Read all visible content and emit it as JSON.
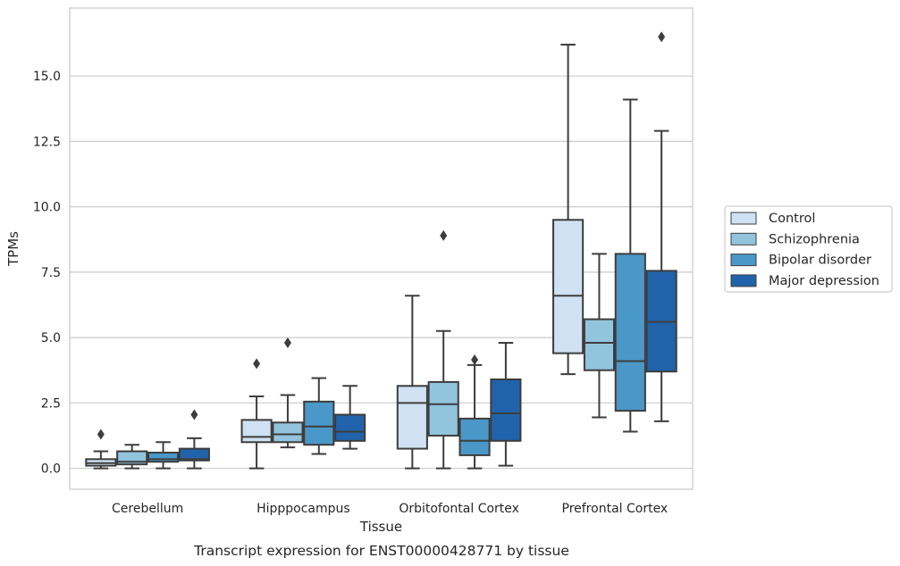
{
  "chart_data": {
    "type": "box",
    "caption": "Transcript expression for ENST00000428771 by tissue",
    "xlabel": "Tissue",
    "ylabel": "TPMs",
    "ylim": [
      -0.8,
      17.6
    ],
    "yticks": [
      0.0,
      2.5,
      5.0,
      7.5,
      10.0,
      12.5,
      15.0
    ],
    "ytick_labels": [
      "0.0",
      "2.5",
      "5.0",
      "7.5",
      "10.0",
      "12.5",
      "15.0"
    ],
    "categories": [
      "Cerebellum",
      "Hipppocampus",
      "Orbitofontal Cortex",
      "Prefrontal Cortex"
    ],
    "grid": "horizontal",
    "legend_position": "right",
    "series": [
      {
        "name": "Control",
        "color": "#cfe1f2",
        "boxes": [
          {
            "whislo": 0.0,
            "q1": 0.1,
            "med": 0.2,
            "q3": 0.35,
            "whishi": 0.65,
            "fliers": [
              1.3
            ]
          },
          {
            "whislo": 0.0,
            "q1": 1.0,
            "med": 1.2,
            "q3": 1.85,
            "whishi": 2.75,
            "fliers": [
              4.0
            ]
          },
          {
            "whislo": 0.0,
            "q1": 0.75,
            "med": 2.5,
            "q3": 3.15,
            "whishi": 6.6,
            "fliers": []
          },
          {
            "whislo": 3.6,
            "q1": 4.4,
            "med": 6.6,
            "q3": 9.5,
            "whishi": 16.2,
            "fliers": []
          }
        ]
      },
      {
        "name": "Schizophrenia",
        "color": "#93c4de",
        "boxes": [
          {
            "whislo": 0.0,
            "q1": 0.15,
            "med": 0.25,
            "q3": 0.65,
            "whishi": 0.9,
            "fliers": []
          },
          {
            "whislo": 0.8,
            "q1": 1.0,
            "med": 1.3,
            "q3": 1.75,
            "whishi": 2.8,
            "fliers": [
              4.8
            ]
          },
          {
            "whislo": 0.0,
            "q1": 1.25,
            "med": 2.45,
            "q3": 3.3,
            "whishi": 5.25,
            "fliers": [
              8.9
            ]
          },
          {
            "whislo": 1.95,
            "q1": 3.75,
            "med": 4.8,
            "q3": 5.7,
            "whishi": 8.2,
            "fliers": []
          }
        ]
      },
      {
        "name": "Bipolar disorder",
        "color": "#4a98c9",
        "boxes": [
          {
            "whislo": 0.0,
            "q1": 0.25,
            "med": 0.35,
            "q3": 0.6,
            "whishi": 1.0,
            "fliers": []
          },
          {
            "whislo": 0.55,
            "q1": 0.9,
            "med": 1.6,
            "q3": 2.55,
            "whishi": 3.45,
            "fliers": []
          },
          {
            "whislo": 0.0,
            "q1": 0.5,
            "med": 1.05,
            "q3": 1.9,
            "whishi": 3.95,
            "fliers": [
              4.15
            ]
          },
          {
            "whislo": 1.4,
            "q1": 2.2,
            "med": 4.1,
            "q3": 8.2,
            "whishi": 14.1,
            "fliers": []
          }
        ]
      },
      {
        "name": "Major depression",
        "color": "#2163aa",
        "boxes": [
          {
            "whislo": 0.0,
            "q1": 0.3,
            "med": 0.35,
            "q3": 0.75,
            "whishi": 1.15,
            "fliers": [
              2.05
            ]
          },
          {
            "whislo": 0.75,
            "q1": 1.05,
            "med": 1.4,
            "q3": 2.05,
            "whishi": 3.15,
            "fliers": []
          },
          {
            "whislo": 0.1,
            "q1": 1.05,
            "med": 2.1,
            "q3": 3.4,
            "whishi": 4.8,
            "fliers": []
          },
          {
            "whislo": 1.8,
            "q1": 3.7,
            "med": 5.6,
            "q3": 7.55,
            "whishi": 12.9,
            "fliers": [
              16.5
            ]
          }
        ]
      }
    ]
  }
}
